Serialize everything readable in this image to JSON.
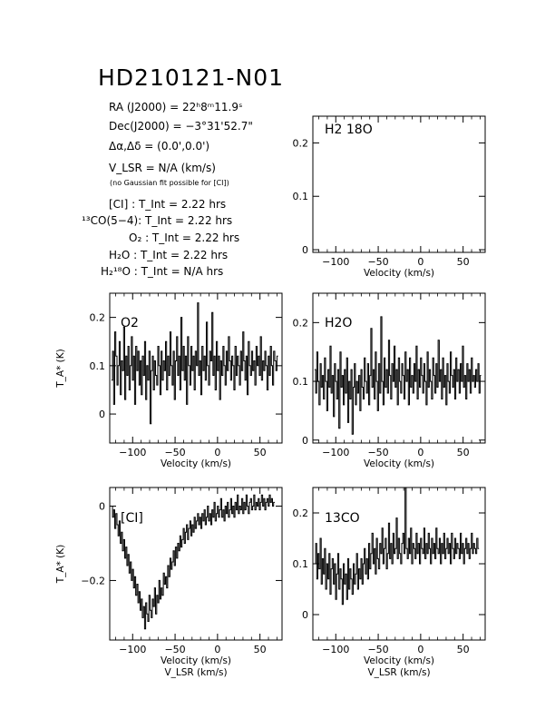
{
  "title": "HD210121-N01",
  "info": {
    "ra": "RA (J2000) =  22ʰ8ᵐ11.9ˢ",
    "dec": "Dec(J2000) = −3°31'52.7\"",
    "offset": "Δα,Δδ = (0.0',0.0')",
    "vlsr": "V_LSR = N/A  (km/s)",
    "note": "(no Gaussian fit possible for [CI])",
    "tint": [
      "[CI] : T_Int = 2.22 hrs",
      "¹³CO(5−4): T_Int = 2.22 hrs",
      "O₂ : T_Int = 2.22 hrs",
      "H₂O : T_Int = 2.22 hrs",
      "H₂¹⁸O : T_Int = N/A  hrs"
    ]
  },
  "chart_data": [
    {
      "type": "line",
      "id": "h218o",
      "title": "H2 18O",
      "xlabel": "Velocity (km/s)",
      "ylabel": "",
      "xlim": [
        -127,
        76
      ],
      "ylim": [
        -0.005,
        0.25
      ],
      "xticks": [
        "−100",
        "−50",
        "0",
        "50"
      ],
      "xtick_values": [
        -100,
        -50,
        0,
        50
      ],
      "yticks": [
        "0",
        "0.1",
        "0.2"
      ],
      "ytick_values": [
        0,
        0.1,
        0.2
      ],
      "series": []
    },
    {
      "type": "line",
      "id": "o2",
      "title": "O2",
      "xlabel": "Velocity (km/s)",
      "ylabel": "T_A* (K)",
      "xlim": [
        -127,
        76
      ],
      "ylim": [
        -0.06,
        0.25
      ],
      "xticks": [
        "−100",
        "−50",
        "0",
        "50"
      ],
      "xtick_values": [
        -100,
        -50,
        0,
        50
      ],
      "yticks": [
        "0",
        "0.1",
        "0.2"
      ],
      "ytick_values": [
        0,
        0.1,
        0.2
      ],
      "series": [
        {
          "x_start": -125,
          "x_step": 1.3,
          "values": [
            0.07,
            0.13,
            0.02,
            0.17,
            0.12,
            0.06,
            0.1,
            0.15,
            0.04,
            0.11,
            0.09,
            0.18,
            0.03,
            0.12,
            0.08,
            0.14,
            0.05,
            0.1,
            0.16,
            0.07,
            0.12,
            0.02,
            0.14,
            0.09,
            0.13,
            0.06,
            0.11,
            0.04,
            0.12,
            0.08,
            0.15,
            0.03,
            0.1,
            0.07,
            0.13,
            -0.02,
            0.09,
            0.12,
            0.05,
            0.11,
            0.08,
            0.06,
            0.14,
            0.1,
            0.04,
            0.13,
            0.07,
            0.11,
            0.09,
            0.15,
            0.05,
            0.12,
            0.08,
            0.17,
            0.1,
            0.06,
            0.13,
            0.03,
            0.11,
            0.16,
            0.08,
            0.12,
            0.05,
            0.2,
            0.09,
            0.14,
            0.07,
            0.12,
            0.02,
            0.16,
            0.1,
            0.06,
            0.14,
            0.09,
            0.12,
            0.05,
            0.13,
            0.1,
            0.23,
            0.08,
            0.11,
            0.04,
            0.14,
            0.09,
            0.12,
            0.07,
            0.19,
            0.1,
            0.06,
            0.13,
            0.11,
            0.21,
            0.08,
            0.12,
            0.05,
            0.15,
            0.09,
            0.12,
            0.03,
            0.11,
            0.08,
            0.14,
            0.1,
            0.06,
            0.13,
            0.09,
            0.16,
            0.11,
            0.07,
            0.12,
            0.1,
            0.05,
            0.14,
            0.08,
            0.12,
            0.1,
            0.06,
            0.13,
            0.09,
            0.17,
            0.11,
            0.07,
            0.12,
            0.04,
            0.15,
            0.1,
            0.08,
            0.13,
            0.09,
            0.11,
            0.06,
            0.14,
            0.1,
            0.12,
            0.08,
            0.16,
            0.07,
            0.11,
            0.09,
            0.13,
            0.1,
            0.05,
            0.12,
            0.08,
            0.14,
            0.1,
            0.06,
            0.13,
            0.11,
            0.09,
            0.12
          ]
        }
      ]
    },
    {
      "type": "line",
      "id": "h2o",
      "title": "H2O",
      "xlabel": "Velocity (km/s)",
      "ylabel": "",
      "xlim": [
        -127,
        76
      ],
      "ylim": [
        -0.005,
        0.25
      ],
      "xticks": [
        "−100",
        "−50",
        "0",
        "50"
      ],
      "xtick_values": [
        -100,
        -50,
        0,
        50
      ],
      "yticks": [
        "0",
        "0.1",
        "0.2"
      ],
      "ytick_values": [
        0,
        0.1,
        0.2
      ],
      "series": [
        {
          "x_start": -125,
          "x_step": 1.3,
          "values": [
            0.12,
            0.08,
            0.15,
            0.1,
            0.06,
            0.13,
            0.09,
            0.11,
            0.07,
            0.14,
            0.1,
            0.05,
            0.12,
            0.09,
            0.16,
            0.08,
            0.11,
            0.04,
            0.13,
            0.1,
            0.07,
            0.12,
            0.02,
            0.15,
            0.09,
            0.11,
            0.06,
            0.12,
            0.08,
            0.14,
            0.03,
            0.1,
            0.07,
            0.12,
            0.01,
            0.09,
            0.13,
            0.06,
            0.1,
            0.08,
            0.11,
            0.05,
            0.12,
            0.09,
            0.07,
            0.14,
            0.1,
            0.08,
            0.13,
            0.06,
            0.11,
            0.19,
            0.09,
            0.12,
            0.07,
            0.15,
            0.1,
            0.05,
            0.13,
            0.08,
            0.21,
            0.1,
            0.06,
            0.14,
            0.09,
            0.12,
            0.08,
            0.17,
            0.11,
            0.07,
            0.13,
            0.1,
            0.16,
            0.09,
            0.12,
            0.06,
            0.14,
            0.1,
            0.08,
            0.13,
            0.11,
            0.07,
            0.15,
            0.1,
            0.12,
            0.06,
            0.14,
            0.09,
            0.11,
            0.08,
            0.13,
            0.1,
            0.16,
            0.07,
            0.12,
            0.09,
            0.14,
            0.11,
            0.08,
            0.13,
            0.1,
            0.06,
            0.15,
            0.09,
            0.12,
            0.1,
            0.07,
            0.14,
            0.11,
            0.08,
            0.13,
            0.09,
            0.17,
            0.1,
            0.12,
            0.07,
            0.14,
            0.09,
            0.11,
            0.06,
            0.13,
            0.1,
            0.08,
            0.15,
            0.11,
            0.09,
            0.12,
            0.07,
            0.14,
            0.1,
            0.12,
            0.08,
            0.13,
            0.1,
            0.16,
            0.09,
            0.11,
            0.07,
            0.13,
            0.1,
            0.12,
            0.08,
            0.14,
            0.1,
            0.11,
            0.09,
            0.12,
            0.1,
            0.13,
            0.08,
            0.11
          ]
        }
      ]
    },
    {
      "type": "line",
      "id": "ci",
      "title": "[CI]",
      "xlabel": "Velocity (km/s)",
      "xlabel2": "V_LSR (km/s)",
      "ylabel": "T_A* (K)",
      "xlim": [
        -127,
        76
      ],
      "ylim": [
        -0.36,
        0.05
      ],
      "xticks": [
        "−100",
        "−50",
        "0",
        "50"
      ],
      "xtick_values": [
        -100,
        -50,
        0,
        50
      ],
      "yticks": [
        "−0.2",
        "0"
      ],
      "ytick_values": [
        -0.2,
        0
      ],
      "series": [
        {
          "x_start": -125,
          "x_step": 1.3,
          "values": [
            0.0,
            -0.03,
            -0.01,
            -0.06,
            -0.02,
            -0.05,
            -0.08,
            -0.04,
            -0.1,
            -0.07,
            -0.12,
            -0.09,
            -0.14,
            -0.11,
            -0.16,
            -0.13,
            -0.18,
            -0.15,
            -0.2,
            -0.17,
            -0.22,
            -0.19,
            -0.24,
            -0.21,
            -0.26,
            -0.23,
            -0.28,
            -0.25,
            -0.3,
            -0.27,
            -0.33,
            -0.26,
            -0.29,
            -0.31,
            -0.24,
            -0.28,
            -0.3,
            -0.25,
            -0.27,
            -0.22,
            -0.29,
            -0.24,
            -0.26,
            -0.2,
            -0.25,
            -0.22,
            -0.24,
            -0.18,
            -0.21,
            -0.19,
            -0.22,
            -0.16,
            -0.19,
            -0.14,
            -0.17,
            -0.15,
            -0.12,
            -0.16,
            -0.11,
            -0.14,
            -0.1,
            -0.12,
            -0.08,
            -0.11,
            -0.09,
            -0.06,
            -0.1,
            -0.07,
            -0.05,
            -0.09,
            -0.06,
            -0.04,
            -0.08,
            -0.05,
            -0.07,
            -0.03,
            -0.06,
            -0.04,
            -0.02,
            -0.05,
            -0.03,
            -0.06,
            -0.02,
            -0.04,
            -0.01,
            -0.05,
            -0.03,
            0.0,
            -0.04,
            -0.02,
            -0.05,
            -0.01,
            -0.03,
            0.01,
            -0.04,
            -0.02,
            0.0,
            -0.03,
            -0.01,
            0.02,
            -0.03,
            -0.01,
            -0.04,
            0.0,
            -0.02,
            0.01,
            -0.03,
            -0.01,
            0.02,
            -0.02,
            0.0,
            -0.03,
            0.01,
            -0.01,
            0.03,
            -0.02,
            0.0,
            -0.01,
            0.02,
            -0.02,
            0.01,
            -0.01,
            0.03,
            0.0,
            -0.02,
            0.01,
            0.02,
            -0.01,
            0.0,
            0.03,
            -0.01,
            0.01,
            0.0,
            0.02,
            -0.01,
            0.01,
            0.03,
            0.0,
            0.02,
            -0.01,
            0.01,
            0.02,
            0.0,
            0.03,
            0.01,
            0.02,
            0.0,
            0.01
          ]
        }
      ]
    },
    {
      "type": "line",
      "id": "13co",
      "title": "13CO",
      "xlabel": "Velocity (km/s)",
      "xlabel2": "V_LSR (km/s)",
      "ylabel": "",
      "xlim": [
        -127,
        76
      ],
      "ylim": [
        -0.05,
        0.25
      ],
      "xticks": [
        "−100",
        "−50",
        "0",
        "50"
      ],
      "xtick_values": [
        -100,
        -50,
        0,
        50
      ],
      "yticks": [
        "0",
        "0.1",
        "0.2"
      ],
      "ytick_values": [
        0,
        0.1,
        0.2
      ],
      "series": [
        {
          "x_start": -125,
          "x_step": 1.3,
          "values": [
            0.1,
            0.14,
            0.07,
            0.12,
            0.09,
            0.15,
            0.06,
            0.11,
            0.08,
            0.13,
            0.05,
            0.1,
            0.07,
            0.12,
            0.04,
            0.09,
            0.11,
            0.06,
            0.1,
            0.03,
            0.08,
            0.12,
            0.05,
            0.09,
            0.07,
            0.02,
            0.1,
            0.06,
            0.08,
            0.03,
            0.11,
            0.05,
            0.09,
            0.07,
            0.04,
            0.1,
            0.06,
            0.08,
            0.12,
            0.05,
            0.09,
            0.07,
            0.11,
            0.06,
            0.1,
            0.13,
            0.08,
            0.11,
            0.07,
            0.14,
            0.09,
            0.12,
            0.16,
            0.1,
            0.13,
            0.08,
            0.15,
            0.11,
            0.09,
            0.14,
            0.12,
            0.17,
            0.1,
            0.13,
            0.15,
            0.09,
            0.12,
            0.18,
            0.11,
            0.14,
            0.1,
            0.16,
            0.12,
            0.13,
            0.19,
            0.11,
            0.15,
            0.12,
            0.1,
            0.14,
            0.16,
            0.12,
            0.25,
            0.13,
            0.11,
            0.15,
            0.12,
            0.17,
            0.1,
            0.14,
            0.13,
            0.11,
            0.16,
            0.12,
            0.14,
            0.1,
            0.15,
            0.13,
            0.12,
            0.17,
            0.11,
            0.14,
            0.12,
            0.16,
            0.13,
            0.1,
            0.15,
            0.12,
            0.14,
            0.11,
            0.17,
            0.13,
            0.12,
            0.15,
            0.1,
            0.14,
            0.12,
            0.16,
            0.11,
            0.13,
            0.15,
            0.12,
            0.14,
            0.1,
            0.16,
            0.13,
            0.11,
            0.15,
            0.12,
            0.14,
            0.13,
            0.11,
            0.16,
            0.12,
            0.14,
            0.1,
            0.13,
            0.15,
            0.12,
            0.14,
            0.11,
            0.13,
            0.16,
            0.12,
            0.14,
            0.13,
            0.12,
            0.15,
            0.13
          ]
        }
      ]
    }
  ]
}
